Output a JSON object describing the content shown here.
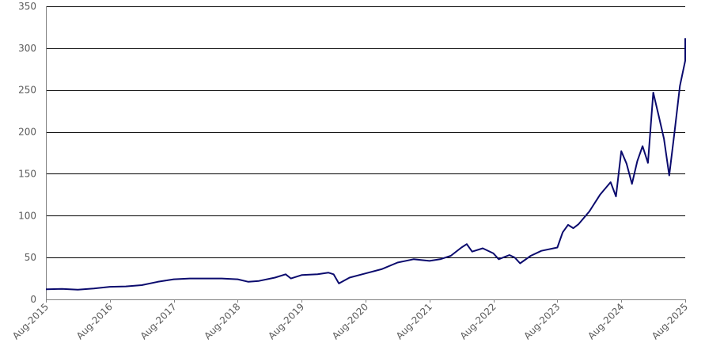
{
  "chart_data": {
    "type": "line",
    "title": "",
    "xlabel": "",
    "ylabel": "",
    "ylim": [
      0,
      350
    ],
    "y_ticks": [
      "0",
      "50",
      "100",
      "150",
      "200",
      "250",
      "300",
      "350"
    ],
    "x_ticks": [
      "Aug-2015",
      "Aug-2016",
      "Aug-2017",
      "Aug-2018",
      "Aug-2019",
      "Aug-2020",
      "Aug-2021",
      "Aug-2022",
      "Aug-2023",
      "Aug-2024",
      "Aug-2025"
    ],
    "xlim": [
      "2015-08",
      "2025-08"
    ],
    "grid": "horizontal",
    "legend": "none",
    "colors": {
      "line": "#0b0b6e",
      "grid": "#000000",
      "axis": "#808080",
      "tick_text": "#595959"
    },
    "series": [
      {
        "values": [
          [
            "2015-08",
            12
          ],
          [
            "2015-11",
            12.5
          ],
          [
            "2016-02",
            11.5
          ],
          [
            "2016-05",
            13
          ],
          [
            "2016-08",
            15
          ],
          [
            "2016-11",
            15.5
          ],
          [
            "2017-02",
            17
          ],
          [
            "2017-05",
            21
          ],
          [
            "2017-08",
            24
          ],
          [
            "2017-11",
            25
          ],
          [
            "2018-02",
            25
          ],
          [
            "2018-05",
            25
          ],
          [
            "2018-08",
            24
          ],
          [
            "2018-10",
            21
          ],
          [
            "2018-12",
            22
          ],
          [
            "2019-03",
            26
          ],
          [
            "2019-05",
            30
          ],
          [
            "2019-06",
            25
          ],
          [
            "2019-08",
            29
          ],
          [
            "2019-11",
            30
          ],
          [
            "2020-01",
            32
          ],
          [
            "2020-02",
            30
          ],
          [
            "2020-03",
            19
          ],
          [
            "2020-05",
            26
          ],
          [
            "2020-08",
            31
          ],
          [
            "2020-11",
            36
          ],
          [
            "2021-02",
            44
          ],
          [
            "2021-05",
            48
          ],
          [
            "2021-08",
            46
          ],
          [
            "2021-10",
            48
          ],
          [
            "2021-12",
            52
          ],
          [
            "2022-02",
            62
          ],
          [
            "2022-03",
            66
          ],
          [
            "2022-04",
            57
          ],
          [
            "2022-06",
            61
          ],
          [
            "2022-08",
            55
          ],
          [
            "2022-09",
            48
          ],
          [
            "2022-11",
            53
          ],
          [
            "2022-12",
            50
          ],
          [
            "2023-01",
            43
          ],
          [
            "2023-03",
            52
          ],
          [
            "2023-05",
            58
          ],
          [
            "2023-08",
            62
          ],
          [
            "2023-09",
            80
          ],
          [
            "2023-10",
            89
          ],
          [
            "2023-11",
            85
          ],
          [
            "2023-12",
            90
          ],
          [
            "2024-02",
            105
          ],
          [
            "2024-04",
            125
          ],
          [
            "2024-06",
            140
          ],
          [
            "2024-07",
            123
          ],
          [
            "2024-08",
            177
          ],
          [
            "2024-09",
            162
          ],
          [
            "2024-10",
            138
          ],
          [
            "2024-11",
            165
          ],
          [
            "2024-12",
            183
          ],
          [
            "2025-01",
            163
          ],
          [
            "2025-02",
            247
          ],
          [
            "2025-03",
            220
          ],
          [
            "2025-04",
            192
          ],
          [
            "2025-05",
            148
          ],
          [
            "2025-06",
            200
          ],
          [
            "2025-07",
            255
          ],
          [
            "2025-08",
            285
          ],
          [
            "2025-09",
            312
          ]
        ]
      }
    ]
  }
}
